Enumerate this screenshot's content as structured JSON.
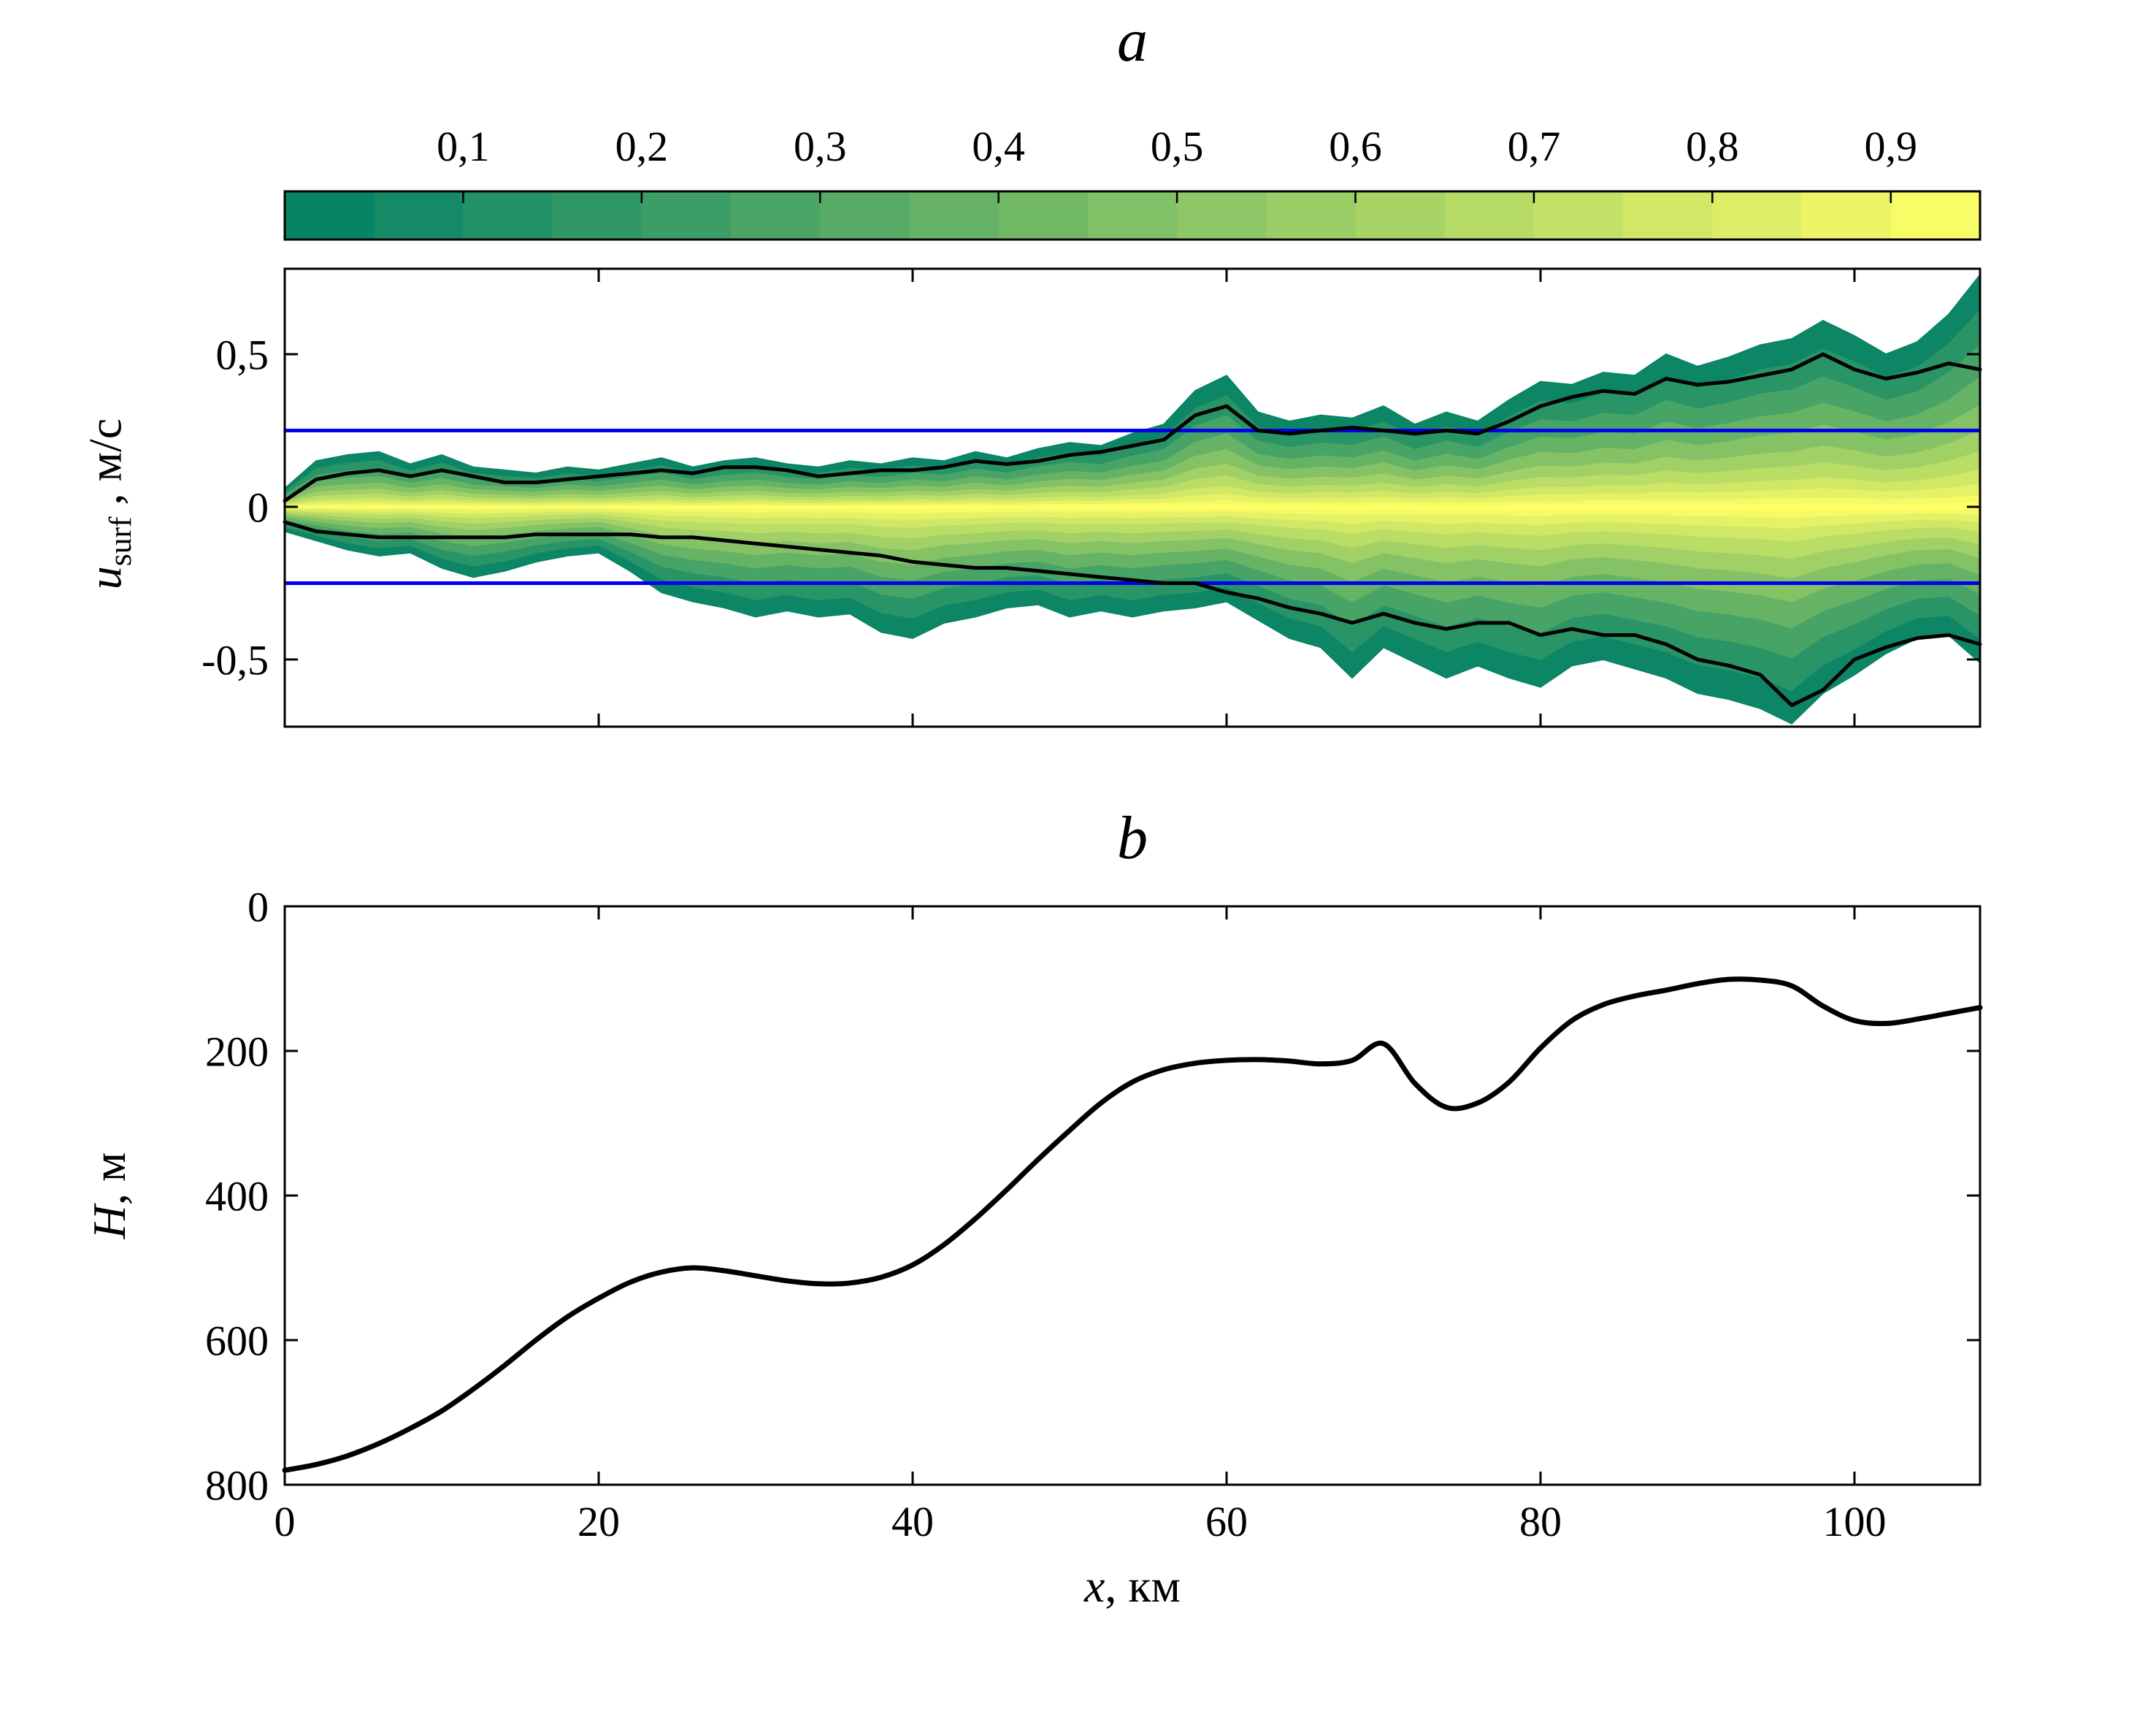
{
  "figure_bg": "#ffffff",
  "titles": {
    "a": "a",
    "b": "b"
  },
  "labels": {
    "panel_a_ylabel": {
      "var": "u",
      "sub": "surf",
      "rest": " , м/с"
    },
    "panel_b_ylabel": {
      "var": "H",
      "rest": ",  м"
    },
    "panel_b_xlabel": {
      "var": "x",
      "rest": ",  км"
    }
  },
  "chart_data": [
    {
      "id": "a",
      "type": "area",
      "title": "a",
      "ylabel": "u_surf , м/с",
      "xlabel": "",
      "xlim": [
        0,
        108
      ],
      "ylim": [
        -0.72,
        0.78
      ],
      "grid": false,
      "x": [
        0,
        2,
        4,
        6,
        8,
        10,
        12,
        14,
        16,
        18,
        20,
        22,
        24,
        26,
        28,
        30,
        32,
        34,
        36,
        38,
        40,
        42,
        44,
        46,
        48,
        50,
        52,
        54,
        56,
        58,
        60,
        62,
        64,
        66,
        68,
        70,
        72,
        74,
        76,
        78,
        80,
        82,
        84,
        86,
        88,
        90,
        92,
        94,
        96,
        98,
        100,
        102,
        104,
        106,
        108
      ],
      "series": [
        {
          "name": "envelope_max",
          "values": [
            0.06,
            0.15,
            0.17,
            0.18,
            0.14,
            0.17,
            0.13,
            0.12,
            0.11,
            0.13,
            0.12,
            0.14,
            0.16,
            0.13,
            0.15,
            0.16,
            0.14,
            0.13,
            0.15,
            0.14,
            0.16,
            0.15,
            0.18,
            0.16,
            0.19,
            0.21,
            0.2,
            0.24,
            0.27,
            0.38,
            0.43,
            0.31,
            0.28,
            0.3,
            0.29,
            0.33,
            0.27,
            0.31,
            0.28,
            0.35,
            0.41,
            0.4,
            0.44,
            0.43,
            0.5,
            0.46,
            0.49,
            0.53,
            0.55,
            0.61,
            0.56,
            0.5,
            0.54,
            0.63,
            0.76
          ]
        },
        {
          "name": "envelope_min",
          "values": [
            -0.08,
            -0.11,
            -0.14,
            -0.16,
            -0.15,
            -0.2,
            -0.23,
            -0.21,
            -0.18,
            -0.16,
            -0.15,
            -0.21,
            -0.28,
            -0.31,
            -0.33,
            -0.36,
            -0.34,
            -0.36,
            -0.35,
            -0.41,
            -0.43,
            -0.38,
            -0.36,
            -0.33,
            -0.32,
            -0.36,
            -0.34,
            -0.36,
            -0.34,
            -0.33,
            -0.31,
            -0.37,
            -0.43,
            -0.46,
            -0.56,
            -0.46,
            -0.51,
            -0.56,
            -0.52,
            -0.56,
            -0.59,
            -0.52,
            -0.5,
            -0.53,
            -0.56,
            -0.61,
            -0.63,
            -0.66,
            -0.71,
            -0.61,
            -0.55,
            -0.48,
            -0.43,
            -0.42,
            -0.51
          ]
        },
        {
          "name": "bound_upper_black",
          "values": [
            0.02,
            0.09,
            0.11,
            0.12,
            0.1,
            0.12,
            0.1,
            0.08,
            0.08,
            0.09,
            0.1,
            0.11,
            0.12,
            0.11,
            0.13,
            0.13,
            0.12,
            0.1,
            0.11,
            0.12,
            0.12,
            0.13,
            0.15,
            0.14,
            0.15,
            0.17,
            0.18,
            0.2,
            0.22,
            0.3,
            0.33,
            0.25,
            0.24,
            0.25,
            0.26,
            0.25,
            0.24,
            0.25,
            0.24,
            0.28,
            0.33,
            0.36,
            0.38,
            0.37,
            0.42,
            0.4,
            0.41,
            0.43,
            0.45,
            0.5,
            0.45,
            0.42,
            0.44,
            0.47,
            0.45
          ]
        },
        {
          "name": "bound_lower_black",
          "values": [
            -0.05,
            -0.08,
            -0.09,
            -0.1,
            -0.1,
            -0.1,
            -0.1,
            -0.1,
            -0.09,
            -0.09,
            -0.09,
            -0.09,
            -0.1,
            -0.1,
            -0.11,
            -0.12,
            -0.13,
            -0.14,
            -0.15,
            -0.16,
            -0.18,
            -0.19,
            -0.2,
            -0.2,
            -0.21,
            -0.22,
            -0.23,
            -0.24,
            -0.25,
            -0.25,
            -0.28,
            -0.3,
            -0.33,
            -0.35,
            -0.38,
            -0.35,
            -0.38,
            -0.4,
            -0.38,
            -0.38,
            -0.42,
            -0.4,
            -0.42,
            -0.42,
            -0.45,
            -0.5,
            -0.52,
            -0.55,
            -0.65,
            -0.6,
            -0.5,
            -0.46,
            -0.43,
            -0.42,
            -0.45
          ]
        }
      ],
      "hlines": {
        "values": [
          0.25,
          -0.25
        ],
        "color": "#0000ee"
      },
      "yticks": {
        "values": [
          0.5,
          0,
          -0.5
        ],
        "labels": [
          "0,5",
          "0",
          "-0,5"
        ]
      },
      "xticks": {
        "values": [
          0,
          20,
          40,
          60,
          80,
          100
        ],
        "labels": []
      },
      "colorbar": {
        "position": "top",
        "min": 0,
        "max": 0.95,
        "segments": 19,
        "cmap": "summer",
        "cmap_start": "#008066",
        "cmap_end": "#ffff66",
        "tick_values": [
          0.1,
          0.2,
          0.3,
          0.4,
          0.5,
          0.6,
          0.7,
          0.8,
          0.9
        ],
        "tick_labels": [
          "0,1",
          "0,2",
          "0,3",
          "0,4",
          "0,5",
          "0,6",
          "0,7",
          "0,8",
          "0,9"
        ]
      }
    },
    {
      "id": "b",
      "type": "line",
      "title": "b",
      "xlabel": "x, км",
      "ylabel": "H, м",
      "xlim": [
        0,
        108
      ],
      "ylim": [
        800,
        0
      ],
      "y_reversed": true,
      "grid": false,
      "line_color": "#000000",
      "x": [
        0,
        2,
        4,
        6,
        8,
        10,
        12,
        14,
        16,
        18,
        20,
        22,
        24,
        26,
        28,
        30,
        32,
        34,
        36,
        38,
        40,
        42,
        44,
        46,
        48,
        50,
        52,
        54,
        56,
        58,
        60,
        62,
        64,
        66,
        68,
        70,
        72,
        74,
        76,
        78,
        80,
        82,
        84,
        86,
        88,
        90,
        92,
        94,
        96,
        98,
        100,
        102,
        104,
        106,
        108
      ],
      "values": [
        780,
        772,
        760,
        743,
        722,
        698,
        668,
        635,
        600,
        568,
        542,
        520,
        506,
        500,
        504,
        511,
        518,
        522,
        521,
        513,
        496,
        468,
        432,
        392,
        350,
        310,
        272,
        243,
        226,
        217,
        213,
        212,
        214,
        218,
        213,
        190,
        245,
        278,
        272,
        243,
        196,
        158,
        136,
        124,
        116,
        107,
        101,
        102,
        110,
        138,
        158,
        162,
        156,
        148,
        140
      ],
      "xticks": {
        "values": [
          0,
          20,
          40,
          60,
          80,
          100
        ],
        "labels": [
          "0",
          "20",
          "40",
          "60",
          "80",
          "100"
        ]
      },
      "yticks": {
        "values": [
          0,
          200,
          400,
          600,
          800
        ],
        "labels": [
          "0",
          "200",
          "400",
          "600",
          "800"
        ]
      }
    }
  ]
}
